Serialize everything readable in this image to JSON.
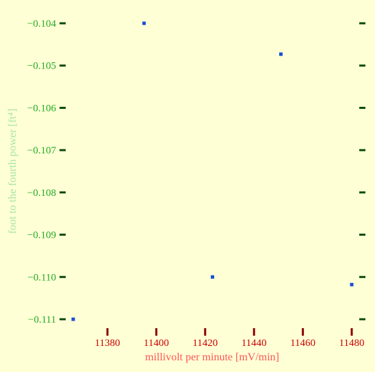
{
  "chart_data": {
    "type": "scatter",
    "title": "",
    "xlabel": "millivolt per minute [mV/min]",
    "ylabel": "foot to the fourth power [ft⁴]",
    "xlim": [
      11364,
      11483.0
    ],
    "ylim": [
      -0.111,
      -0.104
    ],
    "x_ticks": [
      11380,
      11400,
      11420,
      11440,
      11460,
      11480
    ],
    "x_tick_labels": [
      "11380",
      "11400",
      "11420",
      "11440",
      "11460",
      "11480"
    ],
    "y_ticks": [
      -0.104,
      -0.105,
      -0.106,
      -0.107,
      -0.108,
      -0.109,
      -0.11,
      -0.111
    ],
    "y_tick_labels": [
      "−0.104",
      "−0.105",
      "−0.106",
      "−0.107",
      "−0.108",
      "−0.109",
      "−0.110",
      "−0.111"
    ],
    "grid": false,
    "series": [
      {
        "x": [
          11366,
          11395,
          11423,
          11451,
          11480
        ],
        "y": [
          -0.111,
          -0.104,
          -0.11,
          -0.10473,
          -0.11018
        ]
      }
    ],
    "colors": {
      "marker": "#1a4fd6",
      "x_text": "#cc0000",
      "x_ticks": "#8b0000",
      "y_text": "#22aa22",
      "y_ticks": "#0a4a0a",
      "ylabel": "#a8e6a0",
      "xlabel": "#ff5555"
    }
  }
}
